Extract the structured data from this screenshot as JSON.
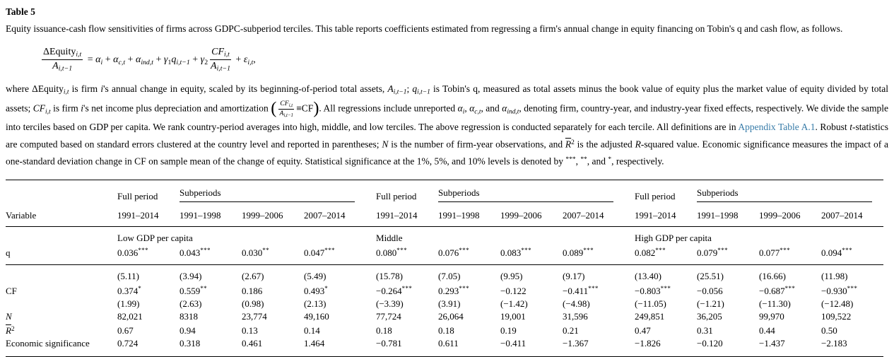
{
  "page": {
    "title": "Table 5"
  },
  "colors": {
    "text": "#000000",
    "link": "#377ba8",
    "rule": "#000000",
    "background": "#ffffff"
  },
  "caption": {
    "segments": [
      {
        "t": "Equity issuance-cash flow sensitivities of firms across GDPC-subperiod terciles. This table reports coefficients estimated from regressing a firm's annual change in equity financing on Tobin's q and cash flow, as follows.",
        "s": "n"
      }
    ]
  },
  "formula": {
    "segments": [
      {
        "frac": {
          "num": [
            {
              "t": "ΔEquity",
              "s": "n"
            },
            {
              "t": "i,t",
              "s": "isub"
            }
          ],
          "den": [
            {
              "t": "A",
              "s": "i"
            },
            {
              "t": "i,t−1",
              "s": "isub"
            }
          ]
        }
      },
      {
        "t": " = ",
        "s": "n"
      },
      {
        "t": "α",
        "s": "i"
      },
      {
        "t": "i",
        "s": "isub"
      },
      {
        "t": " + ",
        "s": "n"
      },
      {
        "t": "α",
        "s": "i"
      },
      {
        "t": "c,t",
        "s": "isub"
      },
      {
        "t": " + ",
        "s": "n"
      },
      {
        "t": "α",
        "s": "i"
      },
      {
        "t": "ind,t",
        "s": "isub"
      },
      {
        "t": " + ",
        "s": "n"
      },
      {
        "t": "γ",
        "s": "i"
      },
      {
        "t": "1",
        "s": "sub"
      },
      {
        "t": "q",
        "s": "i"
      },
      {
        "t": "i,t−1",
        "s": "isub"
      },
      {
        "t": " + ",
        "s": "n"
      },
      {
        "t": "γ",
        "s": "i"
      },
      {
        "t": "2",
        "s": "sub"
      },
      {
        "frac": {
          "num": [
            {
              "t": "CF",
              "s": "i"
            },
            {
              "t": "i,t",
              "s": "isub"
            }
          ],
          "den": [
            {
              "t": "A",
              "s": "i"
            },
            {
              "t": "i,t−1",
              "s": "isub"
            }
          ]
        }
      },
      {
        "t": " + ",
        "s": "n"
      },
      {
        "t": "ε",
        "s": "i"
      },
      {
        "t": "i,t",
        "s": "isub"
      },
      {
        "t": ",",
        "s": "n"
      }
    ]
  },
  "description": {
    "segments": [
      {
        "t": "where ΔEquity",
        "s": "n"
      },
      {
        "t": "i,t",
        "s": "isub"
      },
      {
        "t": " is firm ",
        "s": "n"
      },
      {
        "t": "i",
        "s": "i"
      },
      {
        "t": "'s annual change in equity, scaled by its beginning-of-period total assets, ",
        "s": "n"
      },
      {
        "t": "A",
        "s": "i"
      },
      {
        "t": "i,t−1",
        "s": "isub"
      },
      {
        "t": "; ",
        "s": "n"
      },
      {
        "t": "q",
        "s": "i"
      },
      {
        "t": "i,t−1",
        "s": "isub"
      },
      {
        "t": " is Tobin's q, measured as total assets minus the book value of equity plus the market value of equity divided by total assets; ",
        "s": "n"
      },
      {
        "t": "CF",
        "s": "i"
      },
      {
        "t": "i,t",
        "s": "isub"
      },
      {
        "t": " is firm ",
        "s": "n"
      },
      {
        "t": "i",
        "s": "i"
      },
      {
        "t": "'s net income plus depreciation and amortization ",
        "s": "n"
      },
      {
        "t": "(",
        "s": "paren"
      },
      {
        "frac": {
          "num": [
            {
              "t": "CF",
              "s": "i"
            },
            {
              "t": "i,t",
              "s": "isub"
            }
          ],
          "den": [
            {
              "t": "A",
              "s": "i"
            },
            {
              "t": "i,t−1",
              "s": "isub"
            }
          ]
        },
        "small": true
      },
      {
        "t": "≡CF",
        "s": "n"
      },
      {
        "t": ")",
        "s": "paren"
      },
      {
        "t": ". All regressions include unreported ",
        "s": "n"
      },
      {
        "t": "α",
        "s": "i"
      },
      {
        "t": "i",
        "s": "isub"
      },
      {
        "t": ", ",
        "s": "n"
      },
      {
        "t": "α",
        "s": "i"
      },
      {
        "t": "c,t",
        "s": "isub"
      },
      {
        "t": ", and ",
        "s": "n"
      },
      {
        "t": "α",
        "s": "i"
      },
      {
        "t": "ind,t",
        "s": "isub"
      },
      {
        "t": ", denoting firm, country-year, and industry-year fixed effects, respectively. We divide the sample into terciles based on GDP per capita. We rank country-period averages into high, middle, and low terciles. The above regression is conducted separately for each tercile. All definitions are in ",
        "s": "n"
      },
      {
        "t": "Appendix Table A.1",
        "s": "link"
      },
      {
        "t": ". Robust ",
        "s": "n"
      },
      {
        "t": "t",
        "s": "i"
      },
      {
        "t": "-statistics are computed based on standard errors clustered at the country level and reported in parentheses; ",
        "s": "n"
      },
      {
        "t": "N",
        "s": "i"
      },
      {
        "t": " is the number of firm-year observations, and ",
        "s": "n"
      },
      {
        "t": "R",
        "s": "rbar"
      },
      {
        "t": "2",
        "s": "sup"
      },
      {
        "t": " is the adjusted ",
        "s": "n"
      },
      {
        "t": "R",
        "s": "i"
      },
      {
        "t": "-squared value. Economic significance measures the impact of a one-standard deviation change in CF on sample mean of the change of equity. Statistical significance at the 1%, 5%, and 10% levels is denoted by ",
        "s": "n"
      },
      {
        "t": "***",
        "s": "sup"
      },
      {
        "t": ", ",
        "s": "n"
      },
      {
        "t": "**",
        "s": "sup"
      },
      {
        "t": ", and ",
        "s": "n"
      },
      {
        "t": "*",
        "s": "sup"
      },
      {
        "t": ", respectively.",
        "s": "n"
      }
    ]
  },
  "table": {
    "variable_header": "Variable",
    "full_period_label": "Full period",
    "subperiods_label": "Subperiods",
    "full_year": "1991–2014",
    "sub_years": [
      "1991–1998",
      "1999–2006",
      "2007–2014"
    ],
    "group_labels": [
      "Low GDP per capita",
      "Middle",
      "High GDP per capita"
    ],
    "rows": [
      {
        "label": [
          {
            "t": "q",
            "s": "n"
          }
        ],
        "rule_after": true,
        "cells": [
          "0.036***",
          "0.043***",
          "0.030**",
          "0.047***",
          "0.080***",
          "0.076***",
          "0.083***",
          "0.089***",
          "0.082***",
          "0.079***",
          "0.077***",
          "0.094***"
        ]
      },
      {
        "label": [],
        "cells": [
          "(5.11)",
          "(3.94)",
          "(2.67)",
          "(5.49)",
          "(15.78)",
          "(7.05)",
          "(9.95)",
          "(9.17)",
          "(13.40)",
          "(25.51)",
          "(16.66)",
          "(11.98)"
        ]
      },
      {
        "label": [
          {
            "t": "CF",
            "s": "n"
          }
        ],
        "cells": [
          "0.374*",
          "0.559**",
          "0.186",
          "0.493*",
          "−0.264***",
          "0.293***",
          "−0.122",
          "−0.411***",
          "−0.803***",
          "−0.056",
          "−0.687***",
          "−0.930***"
        ]
      },
      {
        "label": [],
        "cells": [
          "(1.99)",
          "(2.63)",
          "(0.98)",
          "(2.13)",
          "(−3.39)",
          "(3.91)",
          "(−1.42)",
          "(−4.98)",
          "(−11.05)",
          "(−1.21)",
          "(−11.30)",
          "(−12.48)"
        ]
      },
      {
        "label": [
          {
            "t": "N",
            "s": "i"
          }
        ],
        "cells": [
          "82,021",
          "8318",
          "23,774",
          "49,160",
          "77,724",
          "26,064",
          "19,001",
          "31,596",
          "249,851",
          "36,205",
          "99,970",
          "109,522"
        ]
      },
      {
        "label": [
          {
            "t": "R",
            "s": "rbar"
          },
          {
            "t": "2",
            "s": "sup"
          }
        ],
        "cells": [
          "0.67",
          "0.94",
          "0.13",
          "0.14",
          "0.18",
          "0.18",
          "0.19",
          "0.21",
          "0.47",
          "0.31",
          "0.44",
          "0.50"
        ]
      },
      {
        "label": [
          {
            "t": "Economic significance",
            "s": "n"
          }
        ],
        "cells": [
          "0.724",
          "0.318",
          "0.461",
          "1.464",
          "−0.781",
          "0.611",
          "−0.411",
          "−1.367",
          "−1.826",
          "−0.120",
          "−1.437",
          "−2.183"
        ]
      }
    ]
  }
}
